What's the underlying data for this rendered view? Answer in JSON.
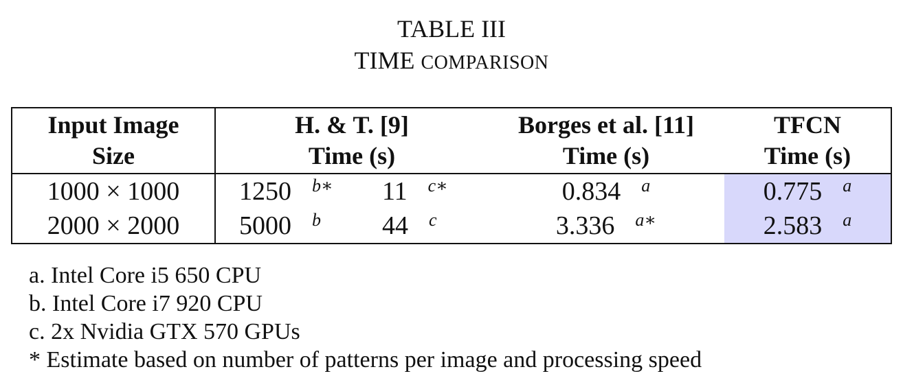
{
  "caption": {
    "number": "TABLE III",
    "title_lead": "TIME",
    "title_rest": "COMPARISON"
  },
  "table": {
    "headers": [
      {
        "line1": "Input Image",
        "line2": "Size"
      },
      {
        "line1": "H. & T. [9]",
        "line2": "Time (s)"
      },
      {
        "line1": "Borges et al. [11]",
        "line2": "Time (s)"
      },
      {
        "line1": "TFCN",
        "line2": "Time (s)"
      }
    ],
    "rows": [
      {
        "size": "1000 × 1000",
        "ht_a": "1250",
        "ht_a_note": "b∗",
        "ht_b": "11",
        "ht_b_note": "c∗",
        "borges": "0.834",
        "borges_note": "a",
        "tfcn": "0.775",
        "tfcn_note": "a"
      },
      {
        "size": "2000 × 2000",
        "ht_a": "5000",
        "ht_a_note": "b",
        "ht_b": "44",
        "ht_b_note": "c",
        "borges": "3.336",
        "borges_note": "a∗",
        "tfcn": "2.583",
        "tfcn_note": "a"
      }
    ],
    "highlight_color": "#d8d8fb"
  },
  "notes": [
    "a. Intel Core i5 650 CPU",
    "b. Intel Core i7 920 CPU",
    "c. 2x Nvidia GTX 570 GPUs",
    "* Estimate based on number of patterns per image and processing speed"
  ]
}
